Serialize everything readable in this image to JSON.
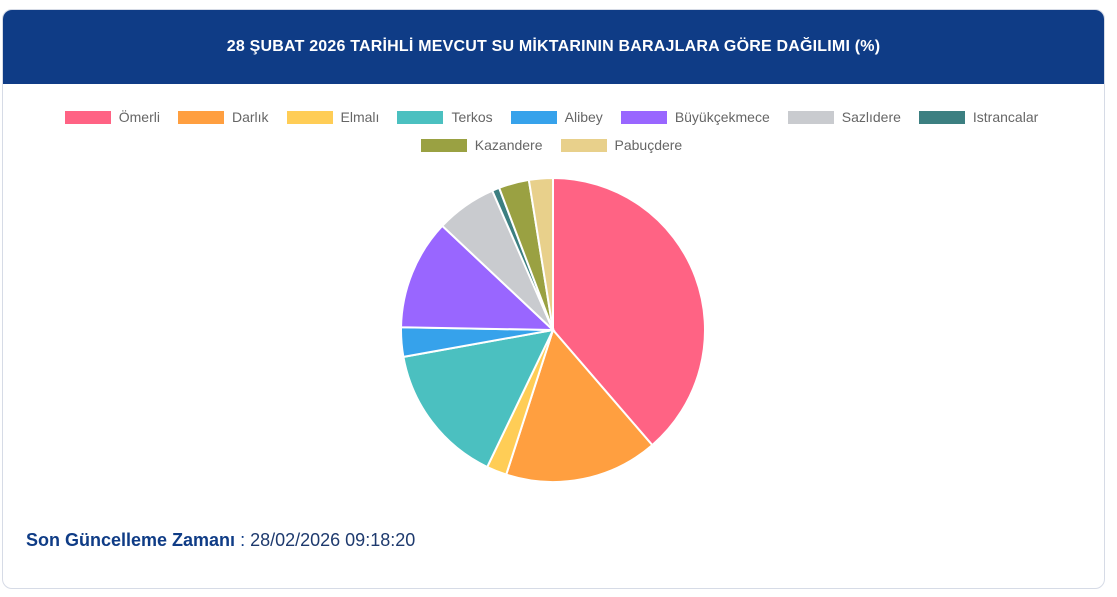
{
  "header": {
    "title": "28 ŞUBAT 2026 TARİHLİ MEVCUT SU MİKTARININ BARAJLARA GÖRE DAĞILIMI (%)"
  },
  "chart_data": {
    "type": "pie",
    "title": "28 ŞUBAT 2026 TARİHLİ MEVCUT SU MİKTARININ BARAJLARA GÖRE DAĞILIMI (%)",
    "legend_position": "top",
    "categories": [
      "Ömerli",
      "Darlık",
      "Elmalı",
      "Terkos",
      "Alibey",
      "Büyükçekmece",
      "Sazlıdere",
      "Istrancalar",
      "Kazandere",
      "Pabuçdere"
    ],
    "values": [
      39.6,
      16.7,
      2.2,
      15.4,
      3.2,
      12.0,
      6.6,
      0.8,
      3.3,
      2.6
    ],
    "colors": [
      "#ff6384",
      "#ff9f40",
      "#ffcd56",
      "#4bc0c0",
      "#36a2eb",
      "#9966ff",
      "#c9cbcf",
      "#3c7f81",
      "#9aa142",
      "#e8d08b"
    ]
  },
  "footer": {
    "label": "Son Güncelleme Zamanı",
    "separator": " : ",
    "value": "28/02/2026 09:18:20"
  }
}
